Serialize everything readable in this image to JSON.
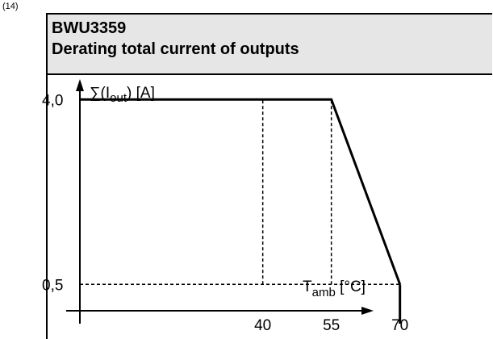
{
  "figure_number": "(14)",
  "header": {
    "model": "BWU3359",
    "subtitle": "Derating total current of outputs"
  },
  "chart_data": {
    "type": "line",
    "series": [
      {
        "x": [
          0,
          55,
          70
        ],
        "y": [
          4.0,
          4.0,
          0.5
        ]
      }
    ],
    "ylabel": {
      "main": "∑(I",
      "sub": "out",
      "tail": ") [A]"
    },
    "xlabel": {
      "main": "T",
      "sub": "amb",
      "tail": " [°C]"
    },
    "xticks": [
      {
        "value": 40,
        "label": "40"
      },
      {
        "value": 55,
        "label": "55"
      },
      {
        "value": 70,
        "label": "70"
      }
    ],
    "yticks": [
      {
        "value": 4.0,
        "label": "4,0"
      },
      {
        "value": 0.5,
        "label": "0,5"
      }
    ],
    "guides": [
      {
        "axis": "x",
        "value": 40,
        "from": 0.5,
        "to": 4.0
      },
      {
        "axis": "x",
        "value": 55,
        "from": 0.5,
        "to": 4.0
      },
      {
        "axis": "y",
        "value": 0.5,
        "from": 0,
        "to": 70
      }
    ],
    "grid": false
  }
}
